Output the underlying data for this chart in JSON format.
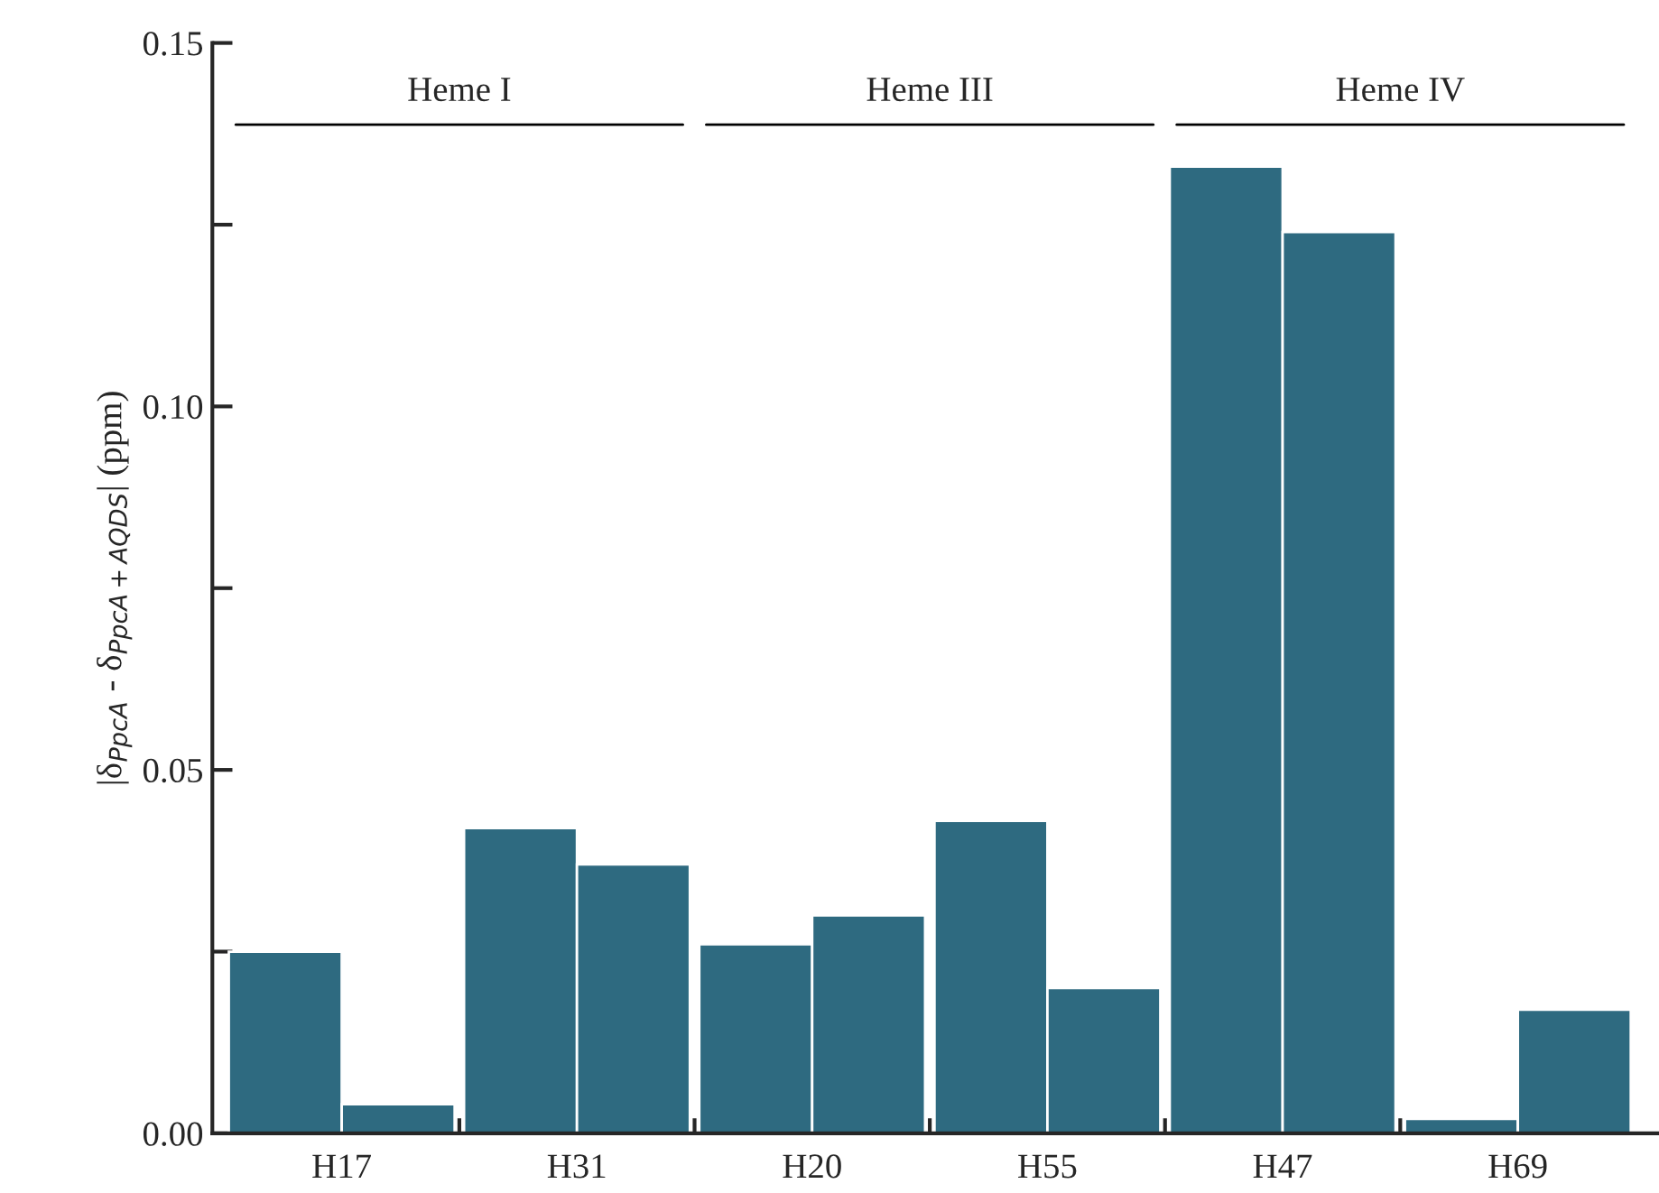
{
  "chart_data": {
    "type": "bar",
    "ylabel": "|δ$_{PpcA}$ - δ$_{PpcA+AQDS}$| (ppm)",
    "categories": [
      "H17",
      "H31",
      "H20",
      "H55",
      "H47",
      "H69"
    ],
    "series": [
      {
        "color": "#2e6a80",
        "values": [
          0.025,
          0.042,
          0.026,
          0.043,
          0.133,
          0.002
        ]
      },
      {
        "color": "#2e6a80",
        "values": [
          0.004,
          0.037,
          0.03,
          0.02,
          0.124,
          0.017
        ]
      }
    ],
    "ylim": [
      0,
      0.15
    ],
    "yticks": [
      {
        "value": 0,
        "label": "0.00"
      },
      {
        "value": 0.025,
        "label": null
      },
      {
        "value": 0.05,
        "label": "0.05"
      },
      {
        "value": 0.075,
        "label": null
      },
      {
        "value": 0.1,
        "label": "0.10"
      },
      {
        "value": 0.125,
        "label": null
      },
      {
        "value": 0.15,
        "label": "0.15"
      }
    ],
    "annotations": [
      "Heme I",
      "Heme III",
      "Heme IV"
    ],
    "grid": false,
    "legend": false
  }
}
